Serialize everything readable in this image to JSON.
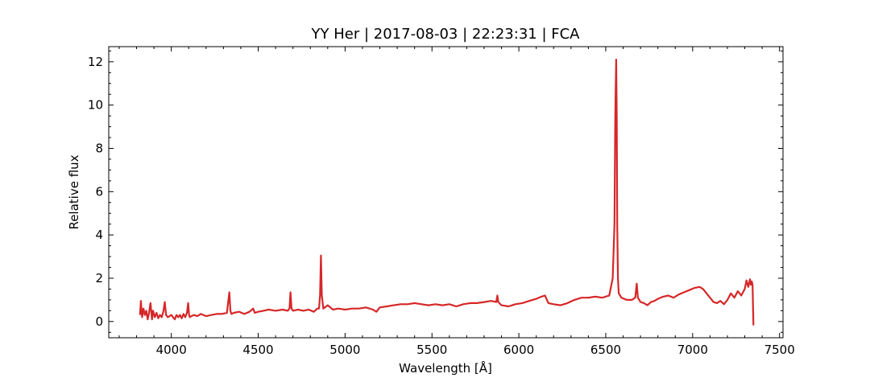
{
  "chart_data": {
    "type": "line",
    "title": "YY Her | 2017-08-03 | 22:23:31 | FCA",
    "xlabel": "Wavelength [Å]",
    "ylabel": "Relative flux",
    "xlim": [
      3640,
      7520
    ],
    "ylim": [
      -0.75,
      12.7
    ],
    "x_ticks": [
      4000,
      4500,
      5000,
      5500,
      6000,
      6500,
      7000,
      7500
    ],
    "y_ticks": [
      0,
      2,
      4,
      6,
      8,
      10,
      12
    ],
    "grid": false,
    "series": [
      {
        "color": "#d62728",
        "x": [
          3820,
          3825,
          3832,
          3840,
          3848,
          3856,
          3864,
          3872,
          3880,
          3889,
          3895,
          3905,
          3915,
          3925,
          3935,
          3945,
          3955,
          3962,
          3970,
          3980,
          3990,
          4000,
          4010,
          4020,
          4030,
          4040,
          4050,
          4060,
          4070,
          4080,
          4090,
          4097,
          4102,
          4107,
          4115,
          4130,
          4150,
          4170,
          4200,
          4230,
          4260,
          4290,
          4320,
          4334,
          4340,
          4346,
          4360,
          4390,
          4420,
          4450,
          4471,
          4480,
          4500,
          4530,
          4560,
          4600,
          4640,
          4670,
          4680,
          4686,
          4692,
          4700,
          4730,
          4760,
          4790,
          4820,
          4840,
          4850,
          4856,
          4861,
          4866,
          4875,
          4900,
          4930,
          4960,
          5000,
          5040,
          5080,
          5120,
          5160,
          5180,
          5200,
          5240,
          5280,
          5320,
          5360,
          5400,
          5440,
          5480,
          5520,
          5560,
          5600,
          5640,
          5680,
          5720,
          5760,
          5800,
          5840,
          5870,
          5876,
          5882,
          5900,
          5940,
          5980,
          6020,
          6060,
          6100,
          6130,
          6150,
          6170,
          6200,
          6240,
          6280,
          6320,
          6360,
          6400,
          6440,
          6480,
          6520,
          6540,
          6550,
          6555,
          6560,
          6563,
          6566,
          6570,
          6575,
          6590,
          6620,
          6650,
          6670,
          6678,
          6685,
          6700,
          6720,
          6740,
          6760,
          6780,
          6800,
          6830,
          6860,
          6890,
          6920,
          6950,
          6980,
          7010,
          7040,
          7060,
          7080,
          7100,
          7120,
          7140,
          7160,
          7180,
          7200,
          7220,
          7240,
          7260,
          7280,
          7300,
          7310,
          7320,
          7330,
          7335,
          7340,
          7345,
          7350,
          7352
        ],
        "y": [
          0.3,
          0.95,
          0.2,
          0.6,
          0.3,
          0.5,
          0.1,
          0.4,
          0.85,
          0.1,
          0.5,
          0.2,
          0.4,
          0.15,
          0.3,
          0.2,
          0.5,
          0.9,
          0.3,
          0.2,
          0.25,
          0.3,
          0.2,
          0.1,
          0.3,
          0.2,
          0.3,
          0.15,
          0.35,
          0.2,
          0.4,
          0.85,
          0.3,
          0.2,
          0.25,
          0.3,
          0.25,
          0.35,
          0.25,
          0.3,
          0.35,
          0.35,
          0.4,
          1.35,
          0.5,
          0.35,
          0.4,
          0.45,
          0.35,
          0.45,
          0.6,
          0.4,
          0.45,
          0.5,
          0.55,
          0.5,
          0.55,
          0.5,
          0.6,
          1.35,
          0.6,
          0.5,
          0.55,
          0.5,
          0.55,
          0.45,
          0.6,
          0.6,
          1.2,
          3.05,
          1.2,
          0.6,
          0.75,
          0.55,
          0.6,
          0.55,
          0.6,
          0.6,
          0.65,
          0.55,
          0.45,
          0.65,
          0.7,
          0.75,
          0.8,
          0.8,
          0.85,
          0.8,
          0.75,
          0.8,
          0.75,
          0.8,
          0.7,
          0.8,
          0.85,
          0.85,
          0.9,
          0.95,
          0.9,
          1.2,
          0.9,
          0.75,
          0.7,
          0.8,
          0.85,
          0.95,
          1.05,
          1.15,
          1.2,
          0.85,
          0.8,
          0.75,
          0.85,
          1.0,
          1.1,
          1.1,
          1.15,
          1.1,
          1.2,
          2.0,
          4.5,
          9.5,
          12.1,
          9.5,
          4.5,
          2.0,
          1.3,
          1.1,
          1.0,
          1.0,
          1.1,
          1.75,
          1.1,
          0.9,
          0.85,
          0.75,
          0.9,
          0.95,
          1.05,
          1.15,
          1.2,
          1.1,
          1.25,
          1.35,
          1.45,
          1.55,
          1.6,
          1.5,
          1.3,
          1.1,
          0.9,
          0.85,
          0.95,
          0.8,
          1.0,
          1.3,
          1.1,
          1.4,
          1.2,
          1.5,
          1.9,
          1.6,
          1.95,
          1.7,
          1.85,
          1.7,
          -0.15,
          -0.15
        ]
      }
    ]
  }
}
